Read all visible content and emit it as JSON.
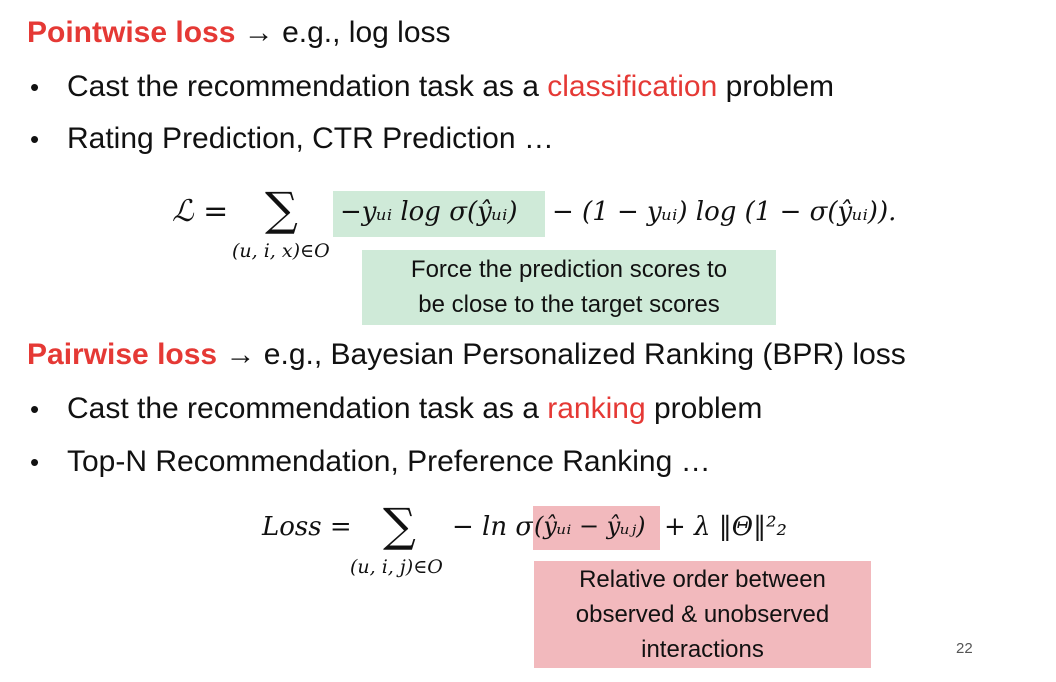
{
  "pointwise": {
    "heading": "Pointwise loss",
    "arrow": "→",
    "heading_rest": "e.g., log loss",
    "bullets": [
      {
        "text_before": "Cast the recommendation task as a ",
        "highlight": "classification",
        "text_after": " problem"
      },
      {
        "text": "Rating Prediction, CTR Prediction …"
      }
    ],
    "formula": {
      "lhs": "ℒ =",
      "sum": "∑",
      "sum_sub": "(u, i, x)∈O",
      "term_highlighted": "−yᵤᵢ log σ(ŷᵤᵢ)",
      "term_rest": "− (1 − yᵤᵢ) log (1 − σ(ŷᵤᵢ)).",
      "note_line1": "Force the prediction scores  to",
      "note_line2": "be close to the target scores"
    }
  },
  "pairwise": {
    "heading": "Pairwise loss",
    "arrow": "→",
    "heading_rest": "e.g., Bayesian Personalized Ranking (BPR) loss",
    "bullets": [
      {
        "text_before": "Cast the recommendation task as a ",
        "highlight": "ranking",
        "text_after": " problem"
      },
      {
        "text": "Top-N Recommendation, Preference Ranking …"
      }
    ],
    "formula": {
      "lhs": "Loss =",
      "sum": "∑",
      "sum_sub": "(u, i, j)∈O",
      "term_before": "− ln σ",
      "term_highlighted": "(ŷᵤᵢ − ŷᵤⱼ)",
      "term_after": "+ λ ‖Θ‖²₂",
      "note_line1": "Relative order between",
      "note_line2": "observed & unobserved",
      "note_line3": "interactions"
    }
  },
  "page_number": "22",
  "colors": {
    "accent_red": "#e53935",
    "highlight_green": "#cfead8",
    "highlight_red": "#f2b9bd"
  }
}
